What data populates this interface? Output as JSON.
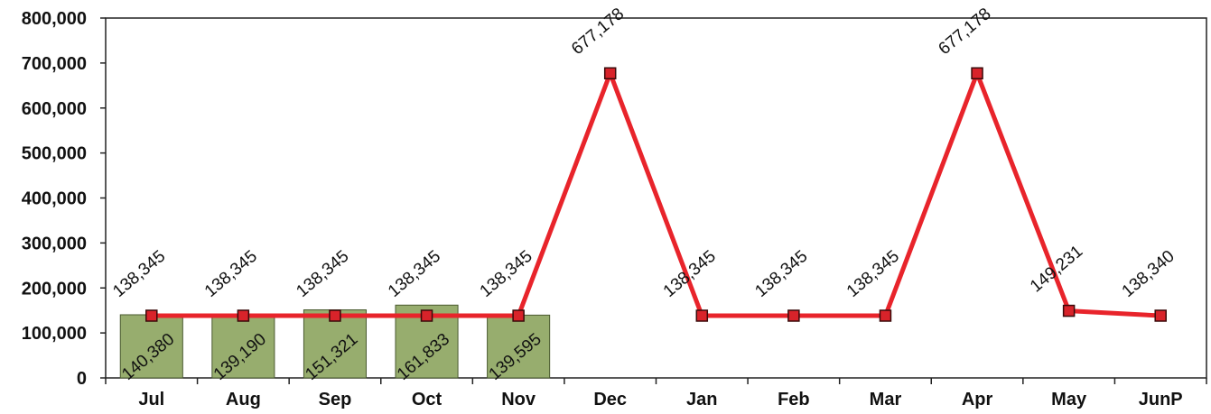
{
  "chart_data": {
    "type": "bar",
    "categories": [
      "Jul",
      "Aug",
      "Sep",
      "Oct",
      "Nov",
      "Dec",
      "Jan",
      "Feb",
      "Mar",
      "Apr",
      "May",
      "JunP"
    ],
    "series": [
      {
        "type": "bar",
        "values": [
          140380,
          139190,
          151321,
          161833,
          139595,
          null,
          null,
          null,
          null,
          null,
          null,
          null
        ],
        "labels": [
          "140,380",
          "139,190",
          "151,321",
          "161,833",
          "139,595"
        ]
      },
      {
        "type": "line",
        "values": [
          138345,
          138345,
          138345,
          138345,
          138345,
          677178,
          138345,
          138345,
          138345,
          677178,
          149231,
          138340
        ],
        "labels": [
          "138,345",
          "138,345",
          "138,345",
          "138,345",
          "138,345",
          "677,178",
          "138,345",
          "138,345",
          "138,345",
          "677,178",
          "149,231",
          "138,340"
        ]
      }
    ],
    "y_ticks": [
      "0",
      "100,000",
      "200,000",
      "300,000",
      "400,000",
      "500,000",
      "600,000",
      "700,000",
      "800,000"
    ],
    "ylim": [
      0,
      800000
    ],
    "grid": false,
    "legend": "none",
    "colors": {
      "bar_fill": "#97AD6E",
      "bar_stroke": "#4a5a30",
      "line": "#E8242B",
      "marker_fill": "#D8232A",
      "marker_stroke": "#3a0a0a"
    }
  }
}
